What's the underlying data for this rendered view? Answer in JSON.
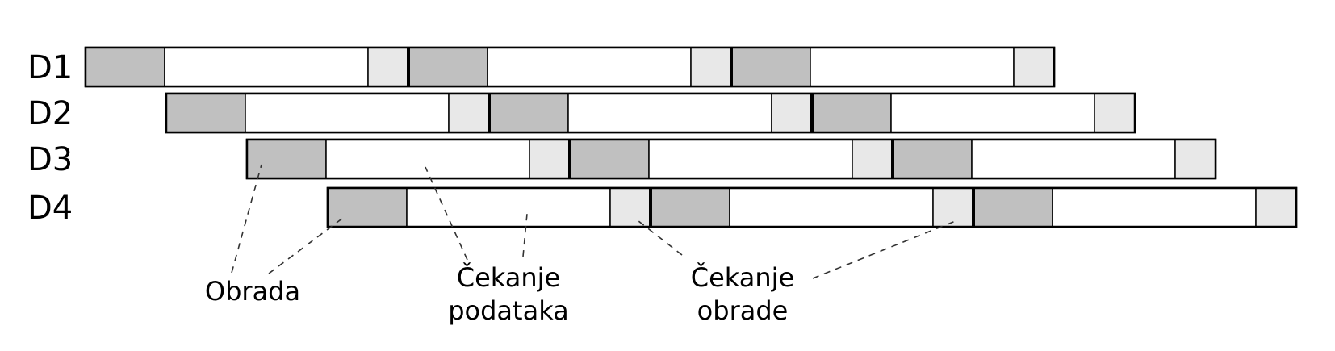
{
  "rows": [
    {
      "label": "D1"
    },
    {
      "label": "D2"
    },
    {
      "label": "D3"
    },
    {
      "label": "D4"
    }
  ],
  "pattern": [
    "processing",
    "waiting-data",
    "waiting-processing",
    "processing",
    "waiting-data",
    "waiting-processing",
    "processing",
    "waiting-data",
    "waiting-processing"
  ],
  "colors": {
    "processing": "#c0c0c0",
    "waiting-data": "#ffffff",
    "waiting-processing": "#e8e8e8",
    "outline": "#000000",
    "leader": "#333333"
  },
  "annotations": {
    "processing": {
      "lines": [
        "Obrada"
      ]
    },
    "waiting_data": {
      "lines": [
        "Čekanje",
        "podataka"
      ]
    },
    "waiting_processing": {
      "lines": [
        "Čekanje",
        "obrade"
      ]
    }
  }
}
